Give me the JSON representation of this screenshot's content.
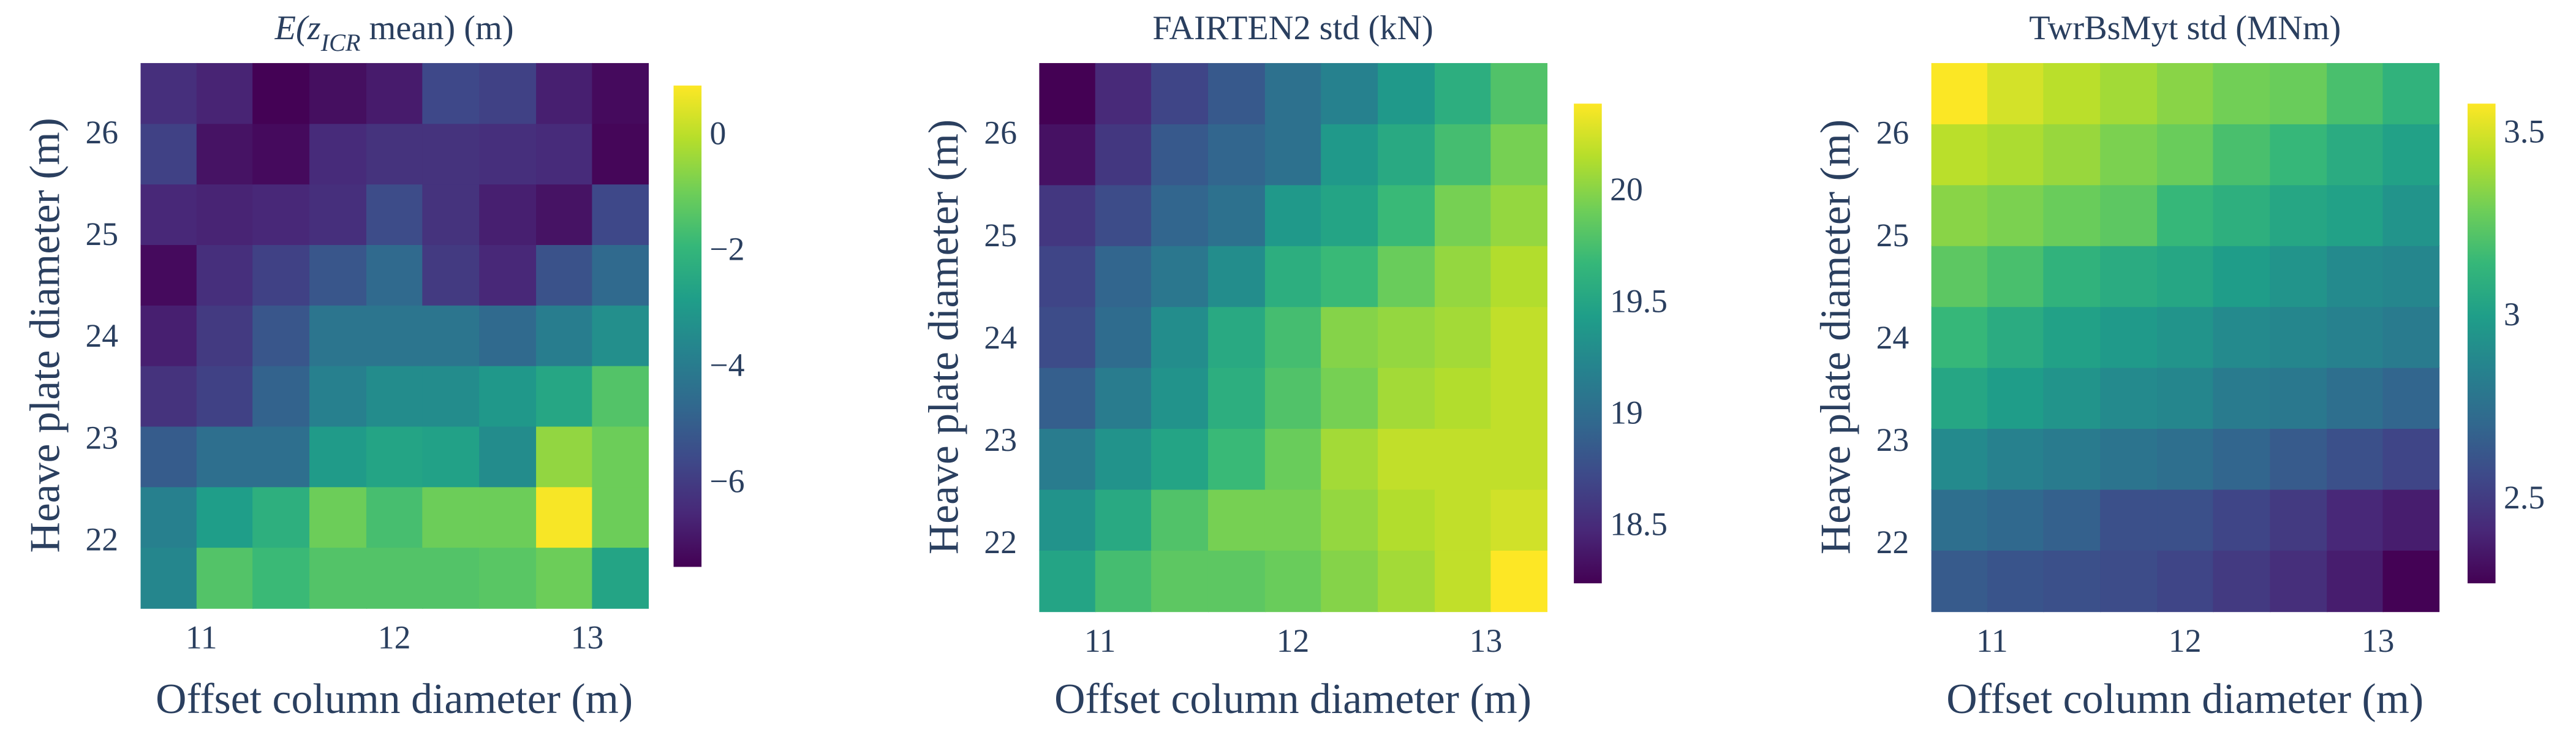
{
  "chart_data": [
    {
      "type": "heatmap",
      "title": [
        "E(z",
        "ICR",
        " mean) (m)"
      ],
      "xlabel": "Offset column diameter (m)",
      "ylabel": "Heave plate diameter (m)",
      "x": [
        10.83,
        11.12,
        11.41,
        11.71,
        12.0,
        12.29,
        12.59,
        12.88,
        13.17
      ],
      "y": [
        21.66,
        22.26,
        22.85,
        23.45,
        24.04,
        24.64,
        25.23,
        25.83,
        26.42
      ],
      "z": [
        [
          -3.6,
          -1.4,
          -1.8,
          -1.4,
          -1.4,
          -1.4,
          -1.3,
          -1.0,
          -2.6
        ],
        [
          -3.8,
          -2.8,
          -2.2,
          -1.0,
          -1.6,
          -1.0,
          -1.0,
          0.8,
          -1.0
        ],
        [
          -5.0,
          -4.4,
          -4.4,
          -2.9,
          -2.6,
          -2.7,
          -3.4,
          -0.5,
          -1.0
        ],
        [
          -6.2,
          -5.8,
          -4.8,
          -3.8,
          -3.4,
          -3.4,
          -3.0,
          -2.5,
          -1.4
        ],
        [
          -6.7,
          -6.0,
          -5.2,
          -4.2,
          -4.2,
          -4.2,
          -4.6,
          -3.9,
          -3.3
        ],
        [
          -7.2,
          -6.3,
          -5.8,
          -5.2,
          -4.6,
          -6.0,
          -6.5,
          -5.3,
          -4.6
        ],
        [
          -6.5,
          -6.6,
          -6.5,
          -6.3,
          -5.5,
          -6.2,
          -6.7,
          -7.0,
          -5.6
        ],
        [
          -5.8,
          -7.0,
          -7.2,
          -6.4,
          -6.2,
          -6.2,
          -6.3,
          -6.4,
          -7.3
        ],
        [
          -6.3,
          -6.6,
          -7.4,
          -7.1,
          -6.8,
          -5.6,
          -5.8,
          -6.7,
          -7.2
        ]
      ],
      "xlim": [
        10.68,
        13.32
      ],
      "ylim": [
        21.36,
        26.72
      ],
      "xticks": [
        11,
        12,
        13
      ],
      "yticks": [
        22,
        23,
        24,
        25,
        26
      ],
      "zlim": [
        -7.42,
        0.88
      ],
      "zticks": [
        {
          "value": -6,
          "label": "−6"
        },
        {
          "value": -4,
          "label": "−4"
        },
        {
          "value": -2,
          "label": "−2"
        },
        0
      ],
      "colorscale": "Viridis"
    },
    {
      "type": "heatmap",
      "title": [
        "FAIRTEN2 std (kN)"
      ],
      "xlabel": "Offset column diameter (m)",
      "ylabel": "Heave plate diameter (m)",
      "x": [
        10.83,
        11.12,
        11.41,
        11.71,
        12.0,
        12.29,
        12.59,
        12.88,
        13.17
      ],
      "y": [
        21.66,
        22.26,
        22.85,
        23.45,
        24.04,
        24.64,
        25.23,
        25.83,
        26.42
      ],
      "z": [
        [
          19.5,
          19.75,
          19.85,
          19.85,
          19.9,
          20.0,
          20.1,
          20.2,
          20.4
        ],
        [
          19.35,
          19.55,
          19.8,
          19.95,
          19.95,
          20.05,
          20.15,
          20.2,
          20.25
        ],
        [
          19.15,
          19.35,
          19.5,
          19.7,
          19.9,
          20.1,
          20.2,
          20.2,
          20.2
        ],
        [
          18.9,
          19.15,
          19.35,
          19.6,
          19.8,
          19.95,
          20.1,
          20.15,
          20.2
        ],
        [
          18.75,
          19.0,
          19.3,
          19.55,
          19.75,
          20.0,
          20.05,
          20.1,
          20.2
        ],
        [
          18.7,
          18.95,
          19.1,
          19.3,
          19.6,
          19.7,
          19.9,
          20.05,
          20.15
        ],
        [
          18.6,
          18.75,
          18.95,
          19.05,
          19.4,
          19.5,
          19.7,
          19.95,
          20.05
        ],
        [
          18.35,
          18.6,
          18.85,
          18.95,
          19.05,
          19.4,
          19.55,
          19.75,
          19.95
        ],
        [
          18.25,
          18.5,
          18.7,
          18.85,
          19.05,
          19.2,
          19.4,
          19.6,
          19.8
        ]
      ],
      "xlim": [
        10.68,
        13.32
      ],
      "ylim": [
        21.36,
        26.72
      ],
      "xticks": [
        11,
        12,
        13
      ],
      "yticks": [
        22,
        23,
        24,
        25,
        26
      ],
      "zlim": [
        18.25,
        20.4
      ],
      "zticks": [
        18.5,
        19,
        19.5,
        20
      ],
      "colorscale": "Viridis"
    },
    {
      "type": "heatmap",
      "title": [
        "TwrBsMyt std (MNm)"
      ],
      "xlabel": "Offset column diameter (m)",
      "ylabel": "Heave plate diameter (m)",
      "x": [
        10.83,
        11.12,
        11.41,
        11.71,
        12.0,
        12.29,
        12.59,
        12.88,
        13.17
      ],
      "y": [
        21.66,
        22.26,
        22.85,
        23.45,
        24.04,
        24.64,
        25.23,
        25.83,
        26.42
      ],
      "z": [
        [
          2.65,
          2.62,
          2.6,
          2.58,
          2.55,
          2.5,
          2.45,
          2.38,
          2.28
        ],
        [
          2.75,
          2.72,
          2.68,
          2.6,
          2.6,
          2.55,
          2.5,
          2.42,
          2.38
        ],
        [
          2.9,
          2.85,
          2.82,
          2.78,
          2.75,
          2.7,
          2.65,
          2.6,
          2.55
        ],
        [
          3.05,
          3.0,
          2.95,
          2.9,
          2.88,
          2.82,
          2.8,
          2.75,
          2.7
        ],
        [
          3.15,
          3.08,
          3.02,
          2.98,
          2.95,
          2.9,
          2.88,
          2.85,
          2.82
        ],
        [
          3.25,
          3.2,
          3.12,
          3.08,
          3.05,
          3.0,
          2.95,
          2.9,
          2.88
        ],
        [
          3.35,
          3.32,
          3.28,
          3.25,
          3.15,
          3.1,
          3.05,
          3.02,
          2.95
        ],
        [
          3.45,
          3.42,
          3.38,
          3.32,
          3.28,
          3.2,
          3.15,
          3.08,
          3.02
        ],
        [
          3.58,
          3.5,
          3.45,
          3.4,
          3.35,
          3.3,
          3.28,
          3.2,
          3.12
        ]
      ],
      "xlim": [
        10.68,
        13.32
      ],
      "ylim": [
        21.36,
        26.72
      ],
      "xticks": [
        11,
        12,
        13
      ],
      "yticks": [
        22,
        23,
        24,
        25,
        26
      ],
      "zlim": [
        2.275,
        3.585
      ],
      "zticks": [
        2.5,
        3,
        3.5
      ],
      "colorscale": "Viridis"
    }
  ]
}
